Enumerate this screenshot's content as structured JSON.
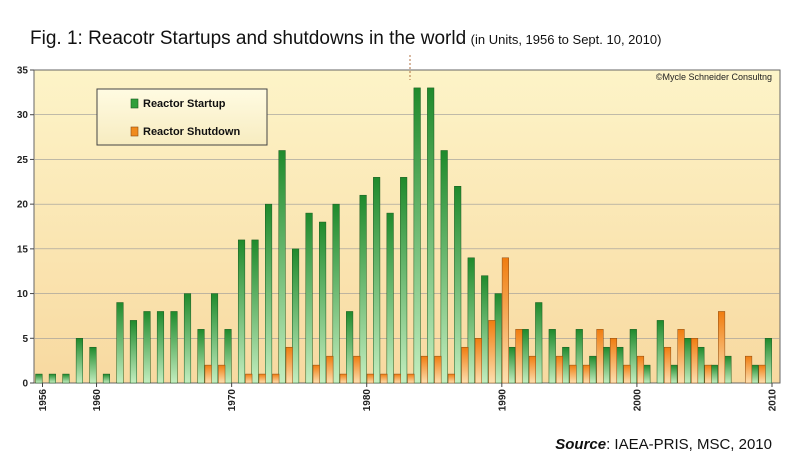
{
  "chart_data": {
    "type": "bar",
    "title": "Fig. 1: Reacotr Startups and shutdowns in the world",
    "subtitle": "(in Units, 1956 to Sept. 10, 2010)",
    "credit": "©Mycle Schneider Consultng",
    "source_label": "Source",
    "source_text": ": IAEA-PRIS, MSC, 2010",
    "ylim": [
      0,
      35
    ],
    "y_ticks": [
      0,
      5,
      10,
      15,
      20,
      25,
      30,
      35
    ],
    "x_tick_labels": [
      "1956",
      "1960",
      "1970",
      "1980",
      "1990",
      "2000",
      "2010"
    ],
    "legend_placement": "top-left",
    "grid": true,
    "categories": [
      1956,
      1957,
      1958,
      1959,
      1960,
      1961,
      1962,
      1963,
      1964,
      1965,
      1966,
      1967,
      1968,
      1969,
      1970,
      1971,
      1972,
      1973,
      1974,
      1975,
      1976,
      1977,
      1978,
      1979,
      1980,
      1981,
      1982,
      1983,
      1984,
      1985,
      1986,
      1987,
      1988,
      1989,
      1990,
      1991,
      1992,
      1993,
      1994,
      1995,
      1996,
      1997,
      1998,
      1999,
      2000,
      2001,
      2002,
      2003,
      2004,
      2005,
      2006,
      2007,
      2008,
      2009,
      2010
    ],
    "series": [
      {
        "name": "Reactor Startup",
        "color": "#2e9e3a",
        "values": [
          1,
          1,
          1,
          5,
          4,
          1,
          9,
          7,
          8,
          8,
          8,
          10,
          6,
          10,
          6,
          16,
          16,
          20,
          26,
          15,
          19,
          18,
          20,
          8,
          21,
          23,
          19,
          23,
          33,
          33,
          26,
          22,
          14,
          12,
          10,
          4,
          6,
          9,
          6,
          4,
          6,
          3,
          4,
          4,
          6,
          2,
          7,
          2,
          5,
          4,
          2,
          3,
          0,
          2,
          5
        ]
      },
      {
        "name": "Reactor Shutdown",
        "color": "#f08a1c",
        "values": [
          0,
          0,
          0,
          0,
          0,
          0,
          0,
          0,
          0,
          0,
          0,
          0,
          2,
          2,
          0,
          1,
          1,
          1,
          4,
          0,
          2,
          3,
          1,
          3,
          1,
          1,
          1,
          1,
          3,
          3,
          1,
          4,
          5,
          7,
          14,
          6,
          3,
          0,
          3,
          2,
          2,
          6,
          5,
          2,
          3,
          0,
          4,
          6,
          5,
          2,
          8,
          0,
          3,
          2,
          0
        ]
      }
    ]
  }
}
